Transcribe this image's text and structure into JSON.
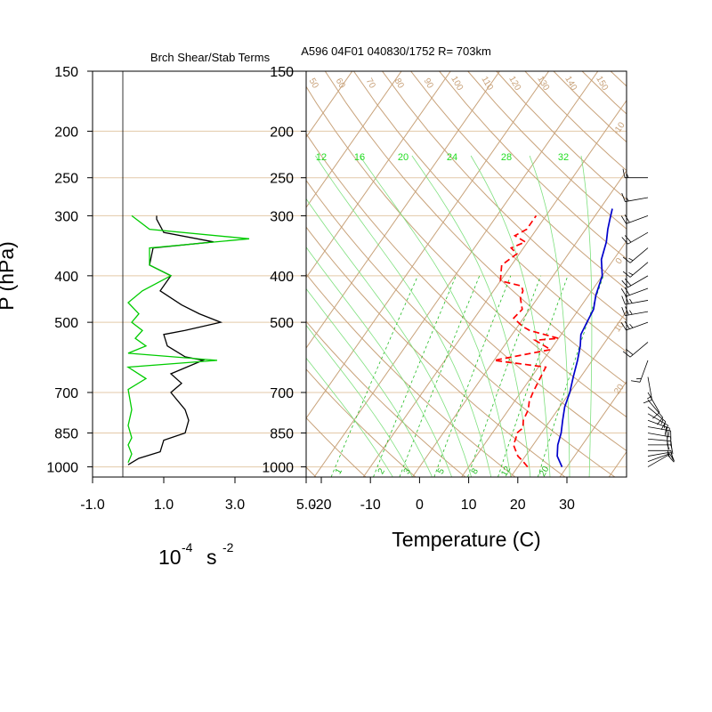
{
  "chart_data": [
    {
      "type": "line",
      "title": "Brch Shear/Stab Terms",
      "ylabel": "P (hPa)",
      "xlabel_main": "10",
      "xlabel_exp": "-4",
      "xlabel_unit": "s",
      "xlabel_unit_exp": "-2",
      "y_ticks": [
        "150",
        "200",
        "250",
        "300",
        "400",
        "500",
        "700",
        "850",
        "1000"
      ],
      "y_tick_values": [
        150,
        200,
        250,
        300,
        400,
        500,
        700,
        850,
        1000
      ],
      "x_ticks": [
        "-1.0",
        "1.0",
        "3.0",
        "5.0"
      ],
      "x_tick_values": [
        -1.0,
        1.0,
        3.0,
        5.0
      ],
      "xlim": [
        -1.0,
        5.0
      ],
      "ylim": [
        1050,
        150
      ],
      "log_y": true,
      "series": [
        {
          "color": "#000000",
          "points": [
            [
              0.0,
              990
            ],
            [
              0.3,
              960
            ],
            [
              0.9,
              930
            ],
            [
              1.0,
              880
            ],
            [
              1.6,
              850
            ],
            [
              1.7,
              800
            ],
            [
              1.6,
              760
            ],
            [
              1.2,
              700
            ],
            [
              1.5,
              670
            ],
            [
              1.2,
              640
            ],
            [
              2.1,
              600
            ],
            [
              1.6,
              590
            ],
            [
              1.1,
              560
            ],
            [
              1.0,
              530
            ],
            [
              1.6,
              520
            ],
            [
              2.6,
              500
            ],
            [
              2.0,
              480
            ],
            [
              1.5,
              460
            ],
            [
              0.9,
              430
            ],
            [
              1.2,
              400
            ],
            [
              0.6,
              380
            ],
            [
              0.7,
              350
            ],
            [
              2.4,
              340
            ],
            [
              1.0,
              325
            ],
            [
              0.8,
              305
            ],
            [
              0.8,
              300
            ]
          ]
        },
        {
          "color": "#00cc00",
          "points": [
            [
              0.0,
              980
            ],
            [
              0.1,
              940
            ],
            [
              0.0,
              900
            ],
            [
              0.1,
              870
            ],
            [
              0.0,
              820
            ],
            [
              0.1,
              760
            ],
            [
              0.0,
              690
            ],
            [
              0.5,
              655
            ],
            [
              0.0,
              620
            ],
            [
              2.5,
              600
            ],
            [
              0.0,
              580
            ],
            [
              0.5,
              560
            ],
            [
              0.2,
              540
            ],
            [
              0.4,
              520
            ],
            [
              0.1,
              500
            ],
            [
              0.3,
              480
            ],
            [
              0.0,
              455
            ],
            [
              0.4,
              430
            ],
            [
              1.2,
              400
            ],
            [
              0.6,
              380
            ],
            [
              0.6,
              350
            ],
            [
              3.4,
              335
            ],
            [
              0.6,
              320
            ],
            [
              0.1,
              300
            ]
          ]
        }
      ]
    },
    {
      "type": "line",
      "title": "A596 04F01 040830/1752 R= 703km",
      "xlabel": "Temperature (C)",
      "ylabel": "P (hPa)",
      "x_ticks": [
        "-20",
        "-10",
        "0",
        "10",
        "20",
        "30"
      ],
      "x_tick_values": [
        -20,
        -10,
        0,
        10,
        20,
        30
      ],
      "y_ticks": [
        "150",
        "200",
        "250",
        "300",
        "400",
        "500",
        "700",
        "850",
        "1000"
      ],
      "y_tick_values": [
        150,
        200,
        250,
        300,
        400,
        500,
        700,
        850,
        1000
      ],
      "xlim": [
        -23,
        42
      ],
      "ylim": [
        1050,
        150
      ],
      "log_y": true,
      "skew": true,
      "mixing_ratio_labels": [
        "1",
        "2",
        "3",
        "5",
        "8",
        "12",
        "20"
      ],
      "theta_e_labels": [
        "12",
        "16",
        "20",
        "24",
        "28",
        "32"
      ],
      "dry_adiabat_labels": [
        "50",
        "60",
        "70",
        "80",
        "90",
        "100",
        "110",
        "120",
        "130",
        "140",
        "150"
      ],
      "isotherm_labels": [
        "-10",
        "0",
        "10",
        "20"
      ],
      "series": [
        {
          "name": "",
          "color": "#0000cc",
          "style": "solid",
          "points": [
            [
              29.0,
              1000
            ],
            [
              26.5,
              950
            ],
            [
              25.0,
              900
            ],
            [
              24.0,
              850
            ],
            [
              22.5,
              800
            ],
            [
              21.0,
              750
            ],
            [
              20.0,
              700
            ],
            [
              18.5,
              650
            ],
            [
              17.0,
              600
            ],
            [
              15.5,
              560
            ],
            [
              14.0,
              530
            ],
            [
              13.5,
              500
            ],
            [
              13.0,
              470
            ],
            [
              11.5,
              440
            ],
            [
              10.0,
              400
            ],
            [
              7.5,
              370
            ],
            [
              6.0,
              340
            ],
            [
              4.5,
              320
            ],
            [
              3.5,
              305
            ],
            [
              2.5,
              290
            ]
          ]
        },
        {
          "name": "",
          "color": "#ff0000",
          "style": "dashed",
          "points": [
            [
              22.0,
              1000
            ],
            [
              20.0,
              970
            ],
            [
              18.5,
              950
            ],
            [
              17.0,
              920
            ],
            [
              16.0,
              900
            ],
            [
              15.5,
              870
            ],
            [
              15.0,
              850
            ],
            [
              15.5,
              830
            ],
            [
              14.5,
              800
            ],
            [
              14.0,
              760
            ],
            [
              13.0,
              730
            ],
            [
              12.5,
              700
            ],
            [
              12.0,
              660
            ],
            [
              11.5,
              620
            ],
            [
              0.0,
              600
            ],
            [
              10.0,
              570
            ],
            [
              5.5,
              545
            ],
            [
              10.0,
              540
            ],
            [
              3.0,
              520
            ],
            [
              1.0,
              510
            ],
            [
              -2.0,
              490
            ],
            [
              -1.5,
              470
            ],
            [
              -3.5,
              445
            ],
            [
              -4.0,
              430
            ],
            [
              -5.0,
              420
            ],
            [
              -10.0,
              410
            ],
            [
              -11.0,
              395
            ],
            [
              -12.0,
              380
            ],
            [
              -10.5,
              360
            ],
            [
              -12.5,
              350
            ],
            [
              -10.5,
              340
            ],
            [
              -13.5,
              330
            ],
            [
              -12.0,
              320
            ],
            [
              -12.0,
              305
            ],
            [
              -12.0,
              300
            ]
          ]
        }
      ]
    }
  ],
  "wind_barbs": {
    "pressures": [
      1000,
      975,
      950,
      925,
      900,
      875,
      850,
      825,
      800,
      775,
      750,
      725,
      700,
      650,
      600,
      550,
      500,
      475,
      450,
      425,
      400,
      375,
      350,
      325,
      300,
      275,
      250
    ],
    "speeds_kt": [
      10,
      10,
      15,
      15,
      15,
      20,
      20,
      20,
      20,
      15,
      15,
      10,
      10,
      15,
      15,
      20,
      25,
      25,
      25,
      20,
      20,
      15,
      15,
      20,
      20,
      15,
      15
    ],
    "directions_deg": [
      60,
      70,
      80,
      90,
      90,
      95,
      100,
      100,
      110,
      120,
      130,
      140,
      150,
      170,
      200,
      230,
      250,
      260,
      260,
      250,
      240,
      230,
      230,
      240,
      250,
      260,
      270
    ]
  }
}
